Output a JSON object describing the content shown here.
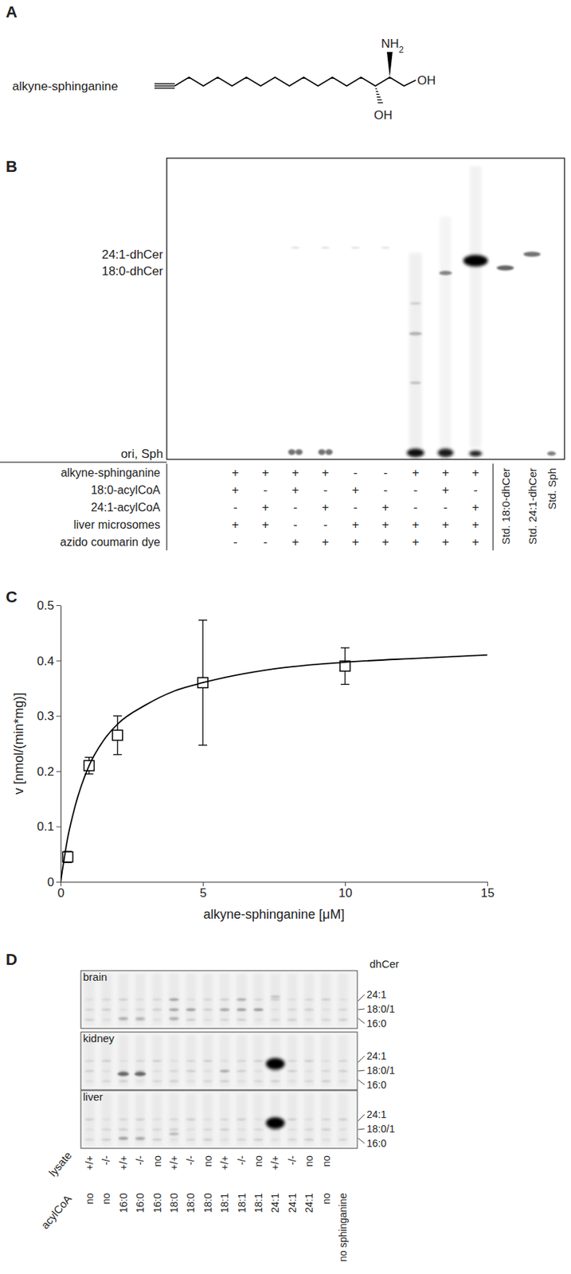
{
  "panel_labels": [
    "A",
    "B",
    "C",
    "D"
  ],
  "panel_a": {
    "compound": "alkyne-sphinganine",
    "amine": "NH2",
    "hydroxyls": [
      "OH",
      "OH"
    ]
  },
  "panel_b": {
    "bands": [
      "24:1-dhCer",
      "18:0-dhCer",
      "ori, Sph"
    ],
    "rows": [
      {
        "label": "alkyne-sphinganine",
        "values": [
          "+",
          "+",
          "+",
          "+",
          "-",
          "-",
          "+",
          "+",
          "+"
        ]
      },
      {
        "label": "18:0-acylCoA",
        "values": [
          "+",
          "-",
          "+",
          "-",
          "+",
          "-",
          "-",
          "+",
          "-"
        ]
      },
      {
        "label": "24:1-acylCoA",
        "values": [
          "-",
          "+",
          "-",
          "+",
          "-",
          "+",
          "-",
          "-",
          "+"
        ]
      },
      {
        "label": "liver microsomes",
        "values": [
          "+",
          "+",
          "-",
          "-",
          "+",
          "+",
          "+",
          "+",
          "+"
        ]
      },
      {
        "label": "azido coumarin dye",
        "values": [
          "-",
          "-",
          "+",
          "+",
          "+",
          "+",
          "+",
          "+",
          "+"
        ]
      }
    ],
    "standards": [
      "Std. 18:0-dhCer",
      "Std. 24:1-dhCer",
      "Std. Sph"
    ]
  },
  "chart_data": {
    "type": "scatter",
    "x_label": "alkyne-sphinganine [μM]",
    "y_label": "v [nmol/(min*mg)]",
    "xlim": [
      0,
      15
    ],
    "ylim": [
      0,
      0.5
    ],
    "xticks": [
      0,
      5,
      10,
      15
    ],
    "yticks": [
      0,
      0.1,
      0.2,
      0.3,
      0.4,
      0.5
    ],
    "series": [
      {
        "type": "scatter",
        "marker": "square",
        "color": "#000000",
        "x": [
          0.25,
          1,
          2,
          5,
          10
        ],
        "values": [
          0.045,
          0.21,
          0.265,
          0.36,
          0.39
        ],
        "errors": [
          0.01,
          0.015,
          0.035,
          0.113,
          0.033
        ]
      },
      {
        "type": "line",
        "line_style": "solid",
        "color": "#000000",
        "x": [
          0,
          0.25,
          0.5,
          1,
          1.5,
          2,
          3,
          4,
          5,
          7.5,
          10,
          12.5,
          15
        ],
        "values": [
          0,
          0.08,
          0.135,
          0.21,
          0.255,
          0.285,
          0.32,
          0.345,
          0.36,
          0.385,
          0.397,
          0.404,
          0.41
        ]
      }
    ]
  },
  "panel_d": {
    "tissues": [
      "brain",
      "kidney",
      "liver"
    ],
    "band_title": "dhCer",
    "bands": [
      "24:1",
      "18:0/1",
      "16:0"
    ],
    "row_labels": [
      "lysate",
      "acylCoA"
    ],
    "lysate": [
      "+/+",
      "-/-",
      "+/+",
      "-/-",
      "no",
      "+/+",
      "-/-",
      "no",
      "+/+",
      "-/-",
      "no",
      "+/+",
      "-/-",
      "no",
      "no",
      null
    ],
    "acylCoA": [
      "no",
      "no",
      "16:0",
      "16:0",
      "16:0",
      "18:0",
      "18:0",
      "18:0",
      "18:1",
      "18:1",
      "18:1",
      "24:1",
      "24:1",
      "24:1",
      "no",
      "no sphinganine"
    ]
  }
}
